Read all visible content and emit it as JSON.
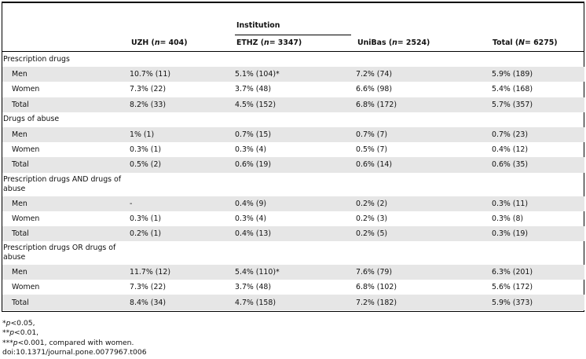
{
  "header": {
    "institution_label": "Institution",
    "columns": [
      {
        "name": "UZH",
        "n_label": "n",
        "n_value": "= 404"
      },
      {
        "name": "ETHZ",
        "n_label": "n",
        "n_value": "= 3347"
      },
      {
        "name": "UniBas",
        "n_label": "n",
        "n_value": "= 2524"
      },
      {
        "name": "Total",
        "n_label": "N",
        "n_value": "= 6275"
      }
    ]
  },
  "rows": [
    {
      "type": "cat",
      "label": "Prescription drugs"
    },
    {
      "type": "sub",
      "label": "Men",
      "values": [
        "10.7% (11)",
        "5.1% (104)*",
        "7.2% (74)",
        "5.9% (189)"
      ]
    },
    {
      "type": "sub",
      "label": "Women",
      "values": [
        "7.3% (22)",
        "3.7% (48)",
        "6.6% (98)",
        "5.4% (168)"
      ]
    },
    {
      "type": "sub",
      "label": "Total",
      "values": [
        "8.2% (33)",
        "4.5% (152)",
        "6.8% (172)",
        "5.7% (357)"
      ]
    },
    {
      "type": "cat",
      "label": "Drugs of abuse"
    },
    {
      "type": "sub",
      "label": "Men",
      "values": [
        "1% (1)",
        "0.7% (15)",
        "0.7% (7)",
        "0.7% (23)"
      ]
    },
    {
      "type": "sub",
      "label": "Women",
      "values": [
        "0.3% (1)",
        "0.3% (4)",
        "0.5% (7)",
        "0.4% (12)"
      ]
    },
    {
      "type": "sub",
      "label": "Total",
      "values": [
        "0.5% (2)",
        "0.6% (19)",
        "0.6% (14)",
        "0.6% (35)"
      ]
    },
    {
      "type": "cat2",
      "label": "Prescription drugs AND drugs of abuse"
    },
    {
      "type": "sub",
      "label": "Men",
      "values": [
        "-",
        "0.4% (9)",
        "0.2% (2)",
        "0.3% (11)"
      ]
    },
    {
      "type": "sub",
      "label": "Women",
      "values": [
        "0.3% (1)",
        "0.3% (4)",
        "0.2% (3)",
        "0.3% (8)"
      ]
    },
    {
      "type": "sub",
      "label": "Total",
      "values": [
        "0.2% (1)",
        "0.4% (13)",
        "0.2% (5)",
        "0.3% (19)"
      ]
    },
    {
      "type": "cat2",
      "label": "Prescription drugs OR drugs of abuse"
    },
    {
      "type": "sub",
      "label": "Men",
      "values": [
        "11.7% (12)",
        "5.4% (110)*",
        "7.6% (79)",
        "6.3% (201)"
      ]
    },
    {
      "type": "sub",
      "label": "Women",
      "values": [
        "7.3% (22)",
        "3.7% (48)",
        "6.8% (102)",
        "5.6% (172)"
      ]
    },
    {
      "type": "sub",
      "label": "Total",
      "values": [
        "8.4% (34)",
        "4.7% (158)",
        "7.2% (182)",
        "5.9% (373)"
      ]
    }
  ],
  "notes": [
    {
      "prefix": "*",
      "p": "p",
      "text": "<0.05,"
    },
    {
      "prefix": "**",
      "p": "p",
      "text": "<0.01,"
    },
    {
      "prefix": "***",
      "p": "p",
      "text": "<0.001, compared with women."
    },
    {
      "prefix": "",
      "p": "",
      "text": "doi:10.1371/journal.pone.0077967.t006"
    }
  ]
}
